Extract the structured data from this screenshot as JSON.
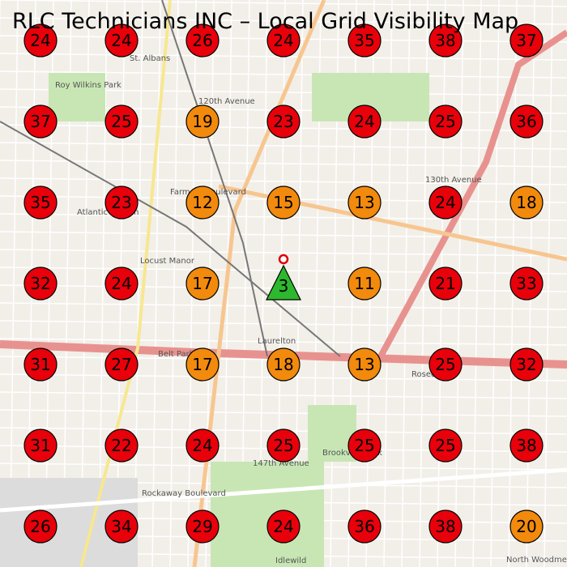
{
  "title": "RLC Technicians INC – Local Grid Visibility Map",
  "grid": {
    "values": [
      [
        24,
        24,
        26,
        24,
        35,
        38,
        37
      ],
      [
        37,
        25,
        19,
        23,
        24,
        25,
        36
      ],
      [
        35,
        23,
        12,
        15,
        13,
        24,
        18
      ],
      [
        32,
        24,
        17,
        null,
        11,
        21,
        33
      ],
      [
        31,
        27,
        17,
        18,
        13,
        25,
        32
      ],
      [
        31,
        22,
        24,
        25,
        25,
        25,
        38
      ],
      [
        26,
        34,
        29,
        24,
        36,
        38,
        20
      ]
    ],
    "colors": [
      [
        "#e8000b",
        "#e8000b",
        "#e8000b",
        "#e8000b",
        "#e8000b",
        "#e8000b",
        "#e8000b"
      ],
      [
        "#e8000b",
        "#e8000b",
        "#f28a0d",
        "#e8000b",
        "#e8000b",
        "#e8000b",
        "#e8000b"
      ],
      [
        "#e8000b",
        "#e8000b",
        "#f28a0d",
        "#f28a0d",
        "#f28a0d",
        "#e8000b",
        "#f28a0d"
      ],
      [
        "#e8000b",
        "#e8000b",
        "#f28a0d",
        null,
        "#f28a0d",
        "#e8000b",
        "#e8000b"
      ],
      [
        "#e8000b",
        "#e8000b",
        "#f28a0d",
        "#f28a0d",
        "#f28a0d",
        "#e8000b",
        "#e8000b"
      ],
      [
        "#e8000b",
        "#e8000b",
        "#e8000b",
        "#e8000b",
        "#e8000b",
        "#e8000b",
        "#e8000b"
      ],
      [
        "#e8000b",
        "#e8000b",
        "#e8000b",
        "#e8000b",
        "#e8000b",
        "#e8000b",
        "#f28a0d"
      ]
    ]
  },
  "marker": {
    "value": 3,
    "color": "#2db82d"
  },
  "map_labels": [
    "St. Albans",
    "Roy Wilkins Park",
    "120th Avenue",
    "Atlantic Branch",
    "Locust Manor",
    "Laurelton",
    "Belt Parkway",
    "Rosedale",
    "147th Avenue",
    "Brookville Park",
    "Idlewild",
    "North Woodmere",
    "Farmers Boulevard",
    "Rockaway Boulevard",
    "130th Avenue"
  ]
}
